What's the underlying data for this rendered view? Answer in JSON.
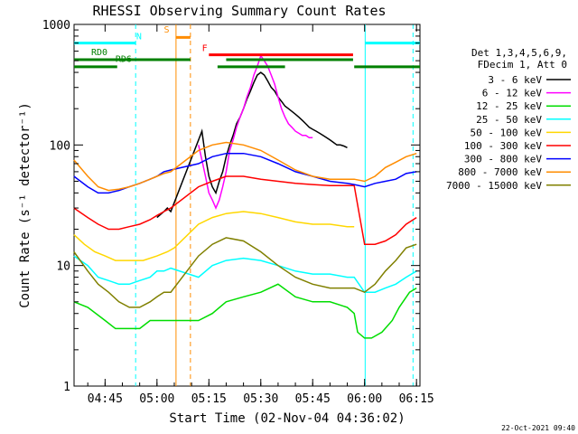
{
  "chart_data": {
    "type": "line",
    "title": "RHESSI Observing Summary Count Rates",
    "xlabel": "Start Time (02-Nov-04 04:36:02)",
    "ylabel": "Count Rate (s⁻¹ detector⁻¹)",
    "x_start": "04:36:02",
    "xlim": [
      "04:36:02",
      "06:16:00"
    ],
    "ylim": [
      1,
      1000
    ],
    "yscale": "log",
    "x_ticks": [
      "04:45",
      "05:00",
      "05:15",
      "05:30",
      "05:45",
      "06:00",
      "06:15"
    ],
    "y_ticks": [
      {
        "value": 1,
        "label": "1"
      },
      {
        "value": 10,
        "label": "10"
      },
      {
        "value": 100,
        "label": "100"
      },
      {
        "value": 1000,
        "label": "1000"
      }
    ],
    "legend_header": [
      "Det 1,3,4,5,6,9,",
      "FDecim 1, Att 0"
    ],
    "legend_placement": "right",
    "series": [
      {
        "name": "3 - 6 keV",
        "color": "#000000",
        "x": [
          "05:00",
          "05:02",
          "05:03",
          "05:04",
          "05:13",
          "05:14",
          "05:15",
          "05:16",
          "05:17",
          "05:18",
          "05:19",
          "05:20",
          "05:21",
          "05:22",
          "05:23",
          "05:24",
          "05:25",
          "05:26",
          "05:27",
          "05:28",
          "05:29",
          "05:30",
          "05:31",
          "05:32",
          "05:33",
          "05:34",
          "05:35",
          "05:36",
          "05:37",
          "05:38",
          "05:39",
          "05:40",
          "05:41",
          "05:42",
          "05:43",
          "05:44",
          "05:45",
          "05:46",
          "05:47",
          "05:48",
          "05:49",
          "05:50",
          "05:51",
          "05:52",
          "05:53",
          "05:54",
          "05:55"
        ],
        "y": [
          25,
          28,
          30,
          28,
          130,
          80,
          55,
          45,
          40,
          50,
          60,
          80,
          100,
          120,
          150,
          170,
          200,
          240,
          280,
          330,
          380,
          400,
          380,
          340,
          300,
          280,
          250,
          230,
          210,
          200,
          190,
          180,
          170,
          160,
          150,
          140,
          135,
          130,
          125,
          120,
          115,
          110,
          105,
          100,
          100,
          98,
          95
        ]
      },
      {
        "name": "6 - 12 keV",
        "color": "#ff00ff",
        "x": [
          "05:12",
          "05:13",
          "05:14",
          "05:15",
          "05:16",
          "05:17",
          "05:18",
          "05:19",
          "05:20",
          "05:21",
          "05:22",
          "05:23",
          "05:24",
          "05:25",
          "05:26",
          "05:27",
          "05:28",
          "05:29",
          "05:30",
          "05:31",
          "05:32",
          "05:33",
          "05:34",
          "05:35",
          "05:36",
          "05:37",
          "05:38",
          "05:39",
          "05:40",
          "05:41",
          "05:42",
          "05:43",
          "05:44",
          "05:45"
        ],
        "y": [
          100,
          75,
          55,
          40,
          35,
          30,
          35,
          45,
          60,
          90,
          110,
          140,
          170,
          200,
          250,
          300,
          380,
          450,
          550,
          500,
          450,
          380,
          320,
          250,
          200,
          170,
          150,
          140,
          130,
          125,
          120,
          120,
          115,
          115
        ]
      },
      {
        "name": "12 - 25 keV",
        "color": "#00dd00",
        "x": [
          "04:36",
          "04:40",
          "04:45",
          "04:48",
          "04:52",
          "04:55",
          "04:58",
          "05:00",
          "05:02",
          "05:04",
          "05:08",
          "05:12",
          "05:16",
          "05:20",
          "05:25",
          "05:30",
          "05:35",
          "05:40",
          "05:45",
          "05:50",
          "05:55",
          "05:57",
          "05:58",
          "06:00",
          "06:02",
          "06:05",
          "06:08",
          "06:10",
          "06:13",
          "06:15"
        ],
        "y": [
          5,
          4.5,
          3.5,
          3,
          3,
          3,
          3.5,
          3.5,
          3.5,
          3.5,
          3.5,
          3.5,
          4,
          5,
          5.5,
          6,
          7,
          5.5,
          5,
          5,
          4.5,
          4,
          2.8,
          2.5,
          2.5,
          2.8,
          3.5,
          4.5,
          6,
          6.5
        ]
      },
      {
        "name": "25 - 50 keV",
        "color": "#00ffff",
        "x": [
          "04:36",
          "04:40",
          "04:43",
          "04:46",
          "04:49",
          "04:52",
          "04:55",
          "04:58",
          "05:00",
          "05:02",
          "05:04",
          "05:12",
          "05:16",
          "05:20",
          "05:25",
          "05:30",
          "05:35",
          "05:40",
          "05:45",
          "05:50",
          "05:55",
          "05:57",
          "06:00",
          "06:03",
          "06:06",
          "06:09",
          "06:12",
          "06:15"
        ],
        "y": [
          12,
          10,
          8,
          7.5,
          7,
          7,
          7.5,
          8,
          9,
          9,
          9.5,
          8,
          10,
          11,
          11.5,
          11,
          10,
          9,
          8.5,
          8.5,
          8,
          8,
          6,
          6,
          6.5,
          7,
          8,
          9
        ]
      },
      {
        "name": "50 - 100 keV",
        "color": "#ffd700",
        "x": [
          "04:36",
          "04:39",
          "04:42",
          "04:45",
          "04:48",
          "04:52",
          "04:56",
          "05:00",
          "05:03",
          "05:05",
          "05:12",
          "05:16",
          "05:20",
          "05:25",
          "05:30",
          "05:35",
          "05:40",
          "05:45",
          "05:50",
          "05:55",
          "05:57"
        ],
        "y": [
          18,
          15,
          13,
          12,
          11,
          11,
          11,
          12,
          13,
          14,
          22,
          25,
          27,
          28,
          27,
          25,
          23,
          22,
          22,
          21,
          21
        ]
      },
      {
        "name": "100 - 300 keV",
        "color": "#ff0000",
        "x": [
          "04:36",
          "04:40",
          "04:43",
          "04:46",
          "04:49",
          "04:52",
          "04:55",
          "04:58",
          "05:00",
          "05:02",
          "05:04",
          "05:12",
          "05:16",
          "05:20",
          "05:25",
          "05:30",
          "05:35",
          "05:40",
          "05:45",
          "05:50",
          "05:55",
          "05:57",
          "06:00",
          "06:03",
          "06:06",
          "06:09",
          "06:12",
          "06:15"
        ],
        "y": [
          30,
          25,
          22,
          20,
          20,
          21,
          22,
          24,
          26,
          28,
          30,
          45,
          50,
          55,
          55,
          52,
          50,
          48,
          47,
          46,
          46,
          46,
          15,
          15,
          16,
          18,
          22,
          25
        ]
      },
      {
        "name": "300 - 800 keV",
        "color": "#0000ff",
        "x": [
          "04:36",
          "04:40",
          "04:43",
          "04:46",
          "04:49",
          "04:52",
          "04:55",
          "04:58",
          "05:00",
          "05:02",
          "05:04",
          "05:12",
          "05:16",
          "05:20",
          "05:25",
          "05:30",
          "05:35",
          "05:40",
          "05:45",
          "05:50",
          "05:55",
          "05:57",
          "06:00",
          "06:03",
          "06:06",
          "06:09",
          "06:12",
          "06:15"
        ],
        "y": [
          55,
          45,
          40,
          40,
          42,
          45,
          48,
          52,
          55,
          60,
          62,
          70,
          80,
          85,
          85,
          80,
          70,
          60,
          55,
          50,
          48,
          47,
          45,
          48,
          50,
          52,
          58,
          60
        ]
      },
      {
        "name": "800 - 7000 keV",
        "color": "#ff8c00",
        "x": [
          "04:36",
          "04:40",
          "04:43",
          "04:46",
          "04:49",
          "04:52",
          "04:55",
          "04:58",
          "05:00",
          "05:02",
          "05:04",
          "05:12",
          "05:16",
          "05:20",
          "05:25",
          "05:30",
          "05:35",
          "05:40",
          "05:45",
          "05:50",
          "05:55",
          "05:57",
          "06:00",
          "06:03",
          "06:06",
          "06:09",
          "06:12",
          "06:15"
        ],
        "y": [
          75,
          55,
          45,
          42,
          43,
          45,
          48,
          52,
          55,
          58,
          60,
          90,
          100,
          105,
          100,
          90,
          75,
          62,
          55,
          52,
          52,
          52,
          50,
          55,
          65,
          72,
          80,
          85
        ]
      },
      {
        "name": "7000 - 15000 keV",
        "color": "#808000",
        "x": [
          "04:36",
          "04:40",
          "04:43",
          "04:46",
          "04:49",
          "04:52",
          "04:55",
          "04:58",
          "05:00",
          "05:02",
          "05:04",
          "05:12",
          "05:16",
          "05:20",
          "05:25",
          "05:30",
          "05:35",
          "05:40",
          "05:45",
          "05:50",
          "05:55",
          "05:57",
          "06:00",
          "06:03",
          "06:06",
          "06:09",
          "06:12",
          "06:15"
        ],
        "y": [
          13,
          9,
          7,
          6,
          5,
          4.5,
          4.5,
          5,
          5.5,
          6,
          6,
          12,
          15,
          17,
          16,
          13,
          10,
          8,
          7,
          6.5,
          6.5,
          6.5,
          6,
          7,
          9,
          11,
          14,
          15
        ]
      }
    ],
    "annotations": [
      {
        "label": "N",
        "color": "#00ffff",
        "x": "04:54",
        "y": 700
      },
      {
        "label": "S",
        "color": "#ff8c00",
        "x": "05:02",
        "y": 800
      },
      {
        "label": "F",
        "color": "#ff0000",
        "x": "05:13",
        "y": 560
      },
      {
        "label": "RD0",
        "color": "#008000",
        "x": "04:41",
        "y": 520
      },
      {
        "label": "RD6",
        "color": "#008000",
        "x": "04:48",
        "y": 455
      }
    ],
    "state_bars": [
      {
        "name": "N",
        "color": "#00ffff",
        "segments": [
          [
            "04:36:02",
            "04:53:50"
          ],
          [
            "06:00:10",
            "06:16:00"
          ]
        ],
        "y": 700
      },
      {
        "name": "S",
        "color": "#ff8c00",
        "segments": [
          [
            "05:05:30",
            "05:09:40"
          ]
        ],
        "y": 780
      },
      {
        "name": "F",
        "color": "#ff0000",
        "segments": [
          [
            "05:15:00",
            "05:56:40"
          ]
        ],
        "y": 560
      },
      {
        "name": "RD0",
        "color": "#008000",
        "segments": [
          [
            "04:36:02",
            "05:09:40"
          ],
          [
            "05:20:00",
            "05:56:40"
          ]
        ],
        "y": 510
      },
      {
        "name": "RD6",
        "color": "#008000",
        "segments": [
          [
            "04:36:02",
            "04:48:30"
          ],
          [
            "05:17:30",
            "05:37:00"
          ],
          [
            "05:57:00",
            "06:16:00"
          ]
        ],
        "y": 445
      }
    ],
    "vertical_markers": [
      {
        "time": "04:53:50",
        "color": "#00ffff",
        "style": "dashed"
      },
      {
        "time": "05:05:30",
        "color": "#ff8c00",
        "style": "solid"
      },
      {
        "time": "05:09:40",
        "color": "#ff8c00",
        "style": "dashed"
      },
      {
        "time": "06:00:10",
        "color": "#00ffff",
        "style": "solid"
      },
      {
        "time": "06:14:00",
        "color": "#00ffff",
        "style": "dashed"
      }
    ],
    "grid": false
  },
  "footer": {
    "timestamp": "22-Oct-2021 09:40"
  }
}
